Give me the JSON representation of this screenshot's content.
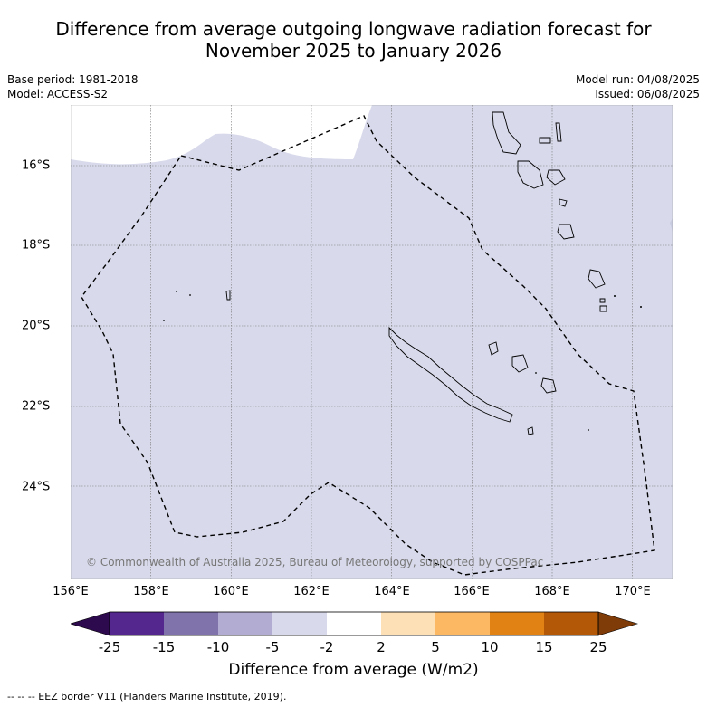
{
  "title_line1": "Difference from average outgoing longwave radiation forecast for",
  "title_line2": "November 2025 to January 2026",
  "base_period": "Base period: 1981-2018",
  "model": "Model: ACCESS-S2",
  "model_run": "Model run: 04/08/2025",
  "issued": "Issued: 06/08/2025",
  "copyright": "© Commonwealth of Australia 2025, Bureau of Meteorology, supported by COSPPac",
  "lon_labels": [
    "156°E",
    "158°E",
    "160°E",
    "162°E",
    "164°E",
    "166°E",
    "168°E",
    "170°E"
  ],
  "lat_labels": [
    "16°S",
    "18°S",
    "20°S",
    "22°S",
    "24°S"
  ],
  "colorbar": {
    "title": "Difference from average (W/m2)",
    "ticks": [
      "-25",
      "-15",
      "-10",
      "-5",
      "-2",
      "2",
      "5",
      "10",
      "15",
      "25"
    ],
    "colors": [
      "#2d0a4e",
      "#54278f",
      "#8073ac",
      "#b2abd2",
      "#d8daeb",
      "#ffffff",
      "#fee0b6",
      "#fdb863",
      "#e08214",
      "#b35806",
      "#7f3b08"
    ]
  },
  "map": {
    "lon_range": [
      156,
      171
    ],
    "lat_range": [
      -14.8,
      -26.6
    ],
    "fill_color": "#d8daeb"
  },
  "footer": "--  --  -- EEZ border V11 (Flanders Marine Institute, 2019)."
}
